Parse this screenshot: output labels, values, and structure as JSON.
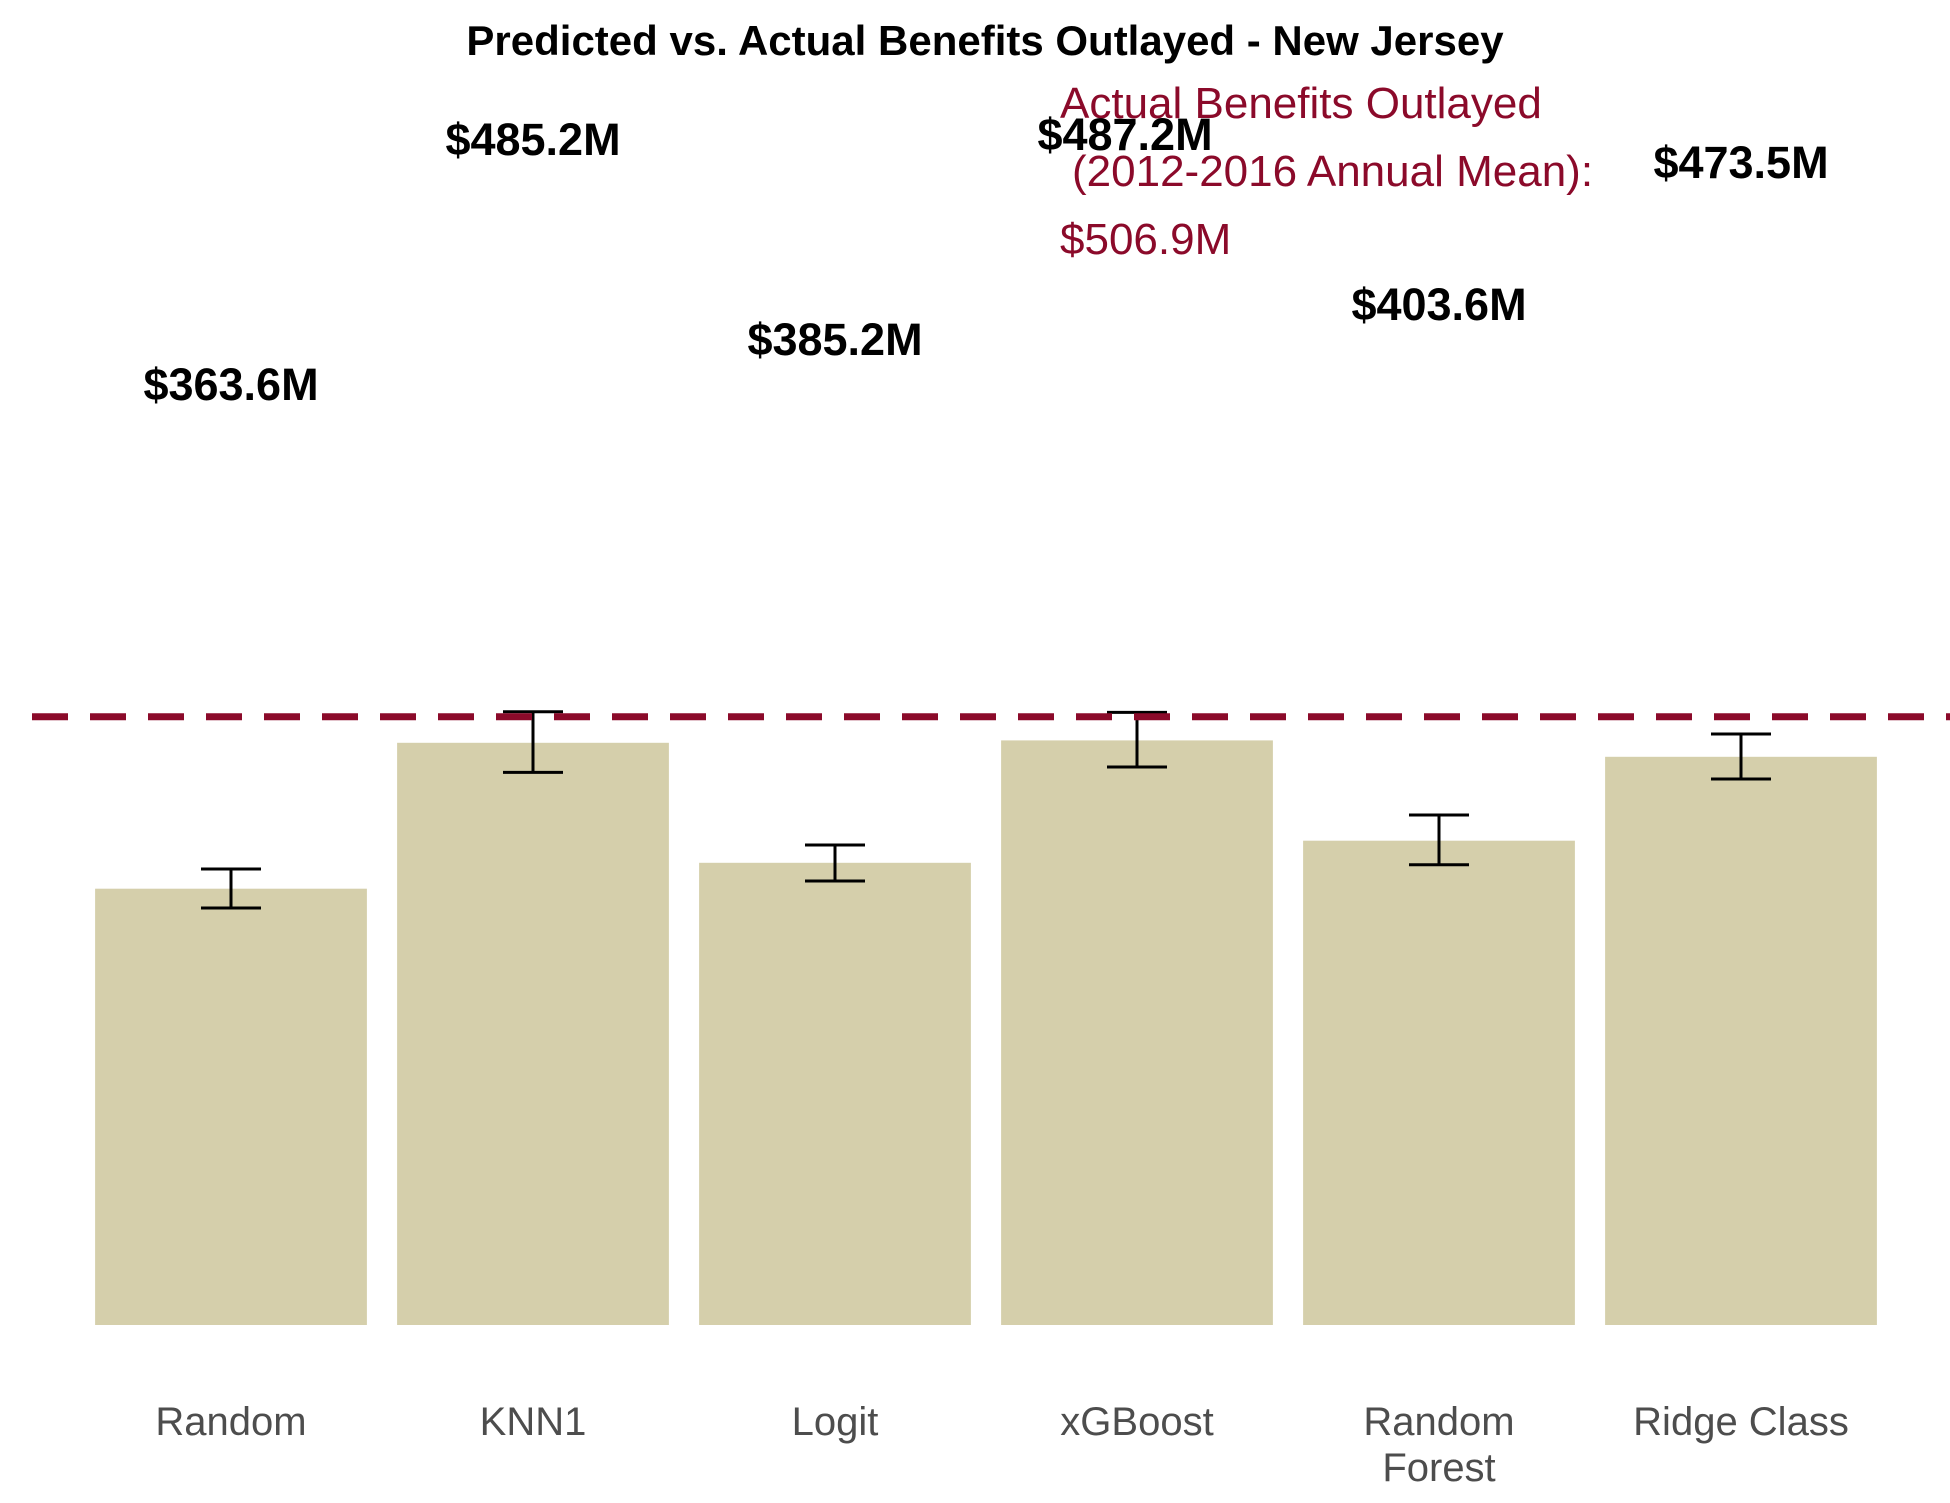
{
  "chart_data": {
    "type": "bar",
    "title": "Predicted vs. Actual Benefits Outlayed - New Jersey",
    "xlabel": "",
    "ylabel": "",
    "categories": [
      [
        "Random"
      ],
      [
        "KNN1"
      ],
      [
        "Logit"
      ],
      [
        "xGBoost"
      ],
      [
        "Random",
        "Forest"
      ],
      [
        "Ridge Class"
      ]
    ],
    "values": [
      363.6,
      485.2,
      385.2,
      487.2,
      403.6,
      473.5
    ],
    "value_labels": [
      "$363.6M",
      "$485.2M",
      "$385.2M",
      "$487.2M",
      "$403.6M",
      "$473.5M"
    ],
    "error_bars": [
      {
        "low": 347.5,
        "high": 380.0
      },
      {
        "low": 460.5,
        "high": 511.0
      },
      {
        "low": 370.0,
        "high": 400.0
      },
      {
        "low": 465.0,
        "high": 510.5
      },
      {
        "low": 383.5,
        "high": 425.0
      },
      {
        "low": 455.0,
        "high": 492.5
      }
    ],
    "reference_line": {
      "value": 506.9,
      "label_lines": [
        "Actual Benefits Outlayed",
        "(2012-2016 Annual Mean):",
        "$506.9M"
      ],
      "style": "dashed",
      "color": "#8b0a2a"
    },
    "ylim": [
      0,
      660
    ],
    "grid": false,
    "legend": "none",
    "bar_color": "#d5cfab",
    "errorbar_color": "#000000"
  }
}
